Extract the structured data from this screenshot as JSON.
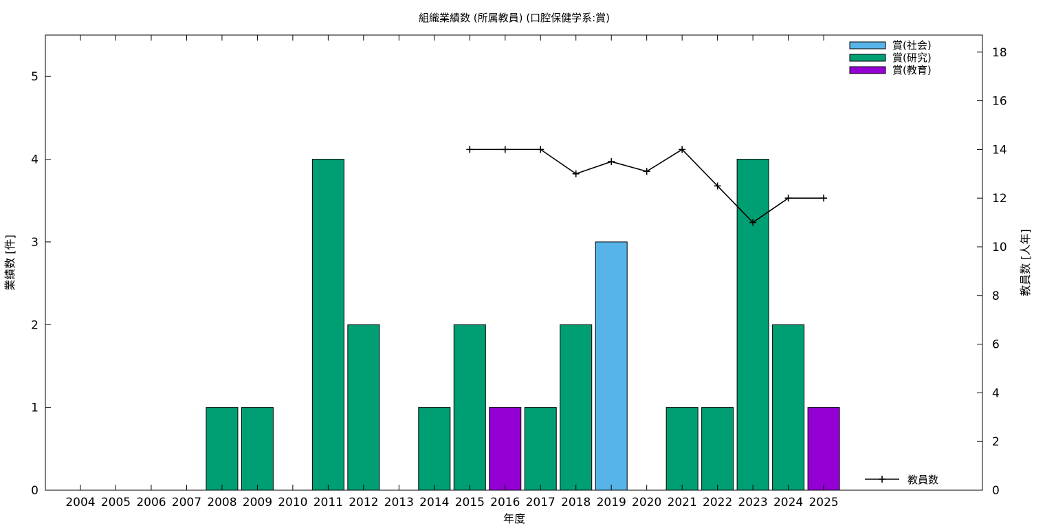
{
  "chart_data": {
    "type": "bar",
    "title": "組織業績数 (所属教員) (口腔保健学系:賞)",
    "xlabel": "年度",
    "ylabel": "業績数 [件]",
    "y2label": "教員数 [人年]",
    "ylim": [
      0,
      5.5
    ],
    "y2lim": [
      0,
      18.7
    ],
    "yticks": [
      0,
      1,
      2,
      3,
      4,
      5
    ],
    "y2ticks": [
      0,
      2,
      4,
      6,
      8,
      10,
      12,
      14,
      16,
      18
    ],
    "categories": [
      "2004",
      "2005",
      "2006",
      "2007",
      "2008",
      "2009",
      "2010",
      "2011",
      "2012",
      "2013",
      "2014",
      "2015",
      "2016",
      "2017",
      "2018",
      "2019",
      "2020",
      "2021",
      "2022",
      "2023",
      "2024",
      "2025"
    ],
    "series": [
      {
        "name": "賞(社会)",
        "color": "#56b4e9",
        "values": [
          0,
          0,
          0,
          0,
          0,
          0,
          0,
          0,
          0,
          0,
          0,
          0,
          0,
          0,
          0,
          3,
          0,
          0,
          0,
          0,
          0,
          0
        ]
      },
      {
        "name": "賞(研究)",
        "color": "#009e73",
        "values": [
          0,
          0,
          0,
          0,
          1,
          1,
          0,
          4,
          2,
          0,
          1,
          2,
          0,
          1,
          2,
          0,
          0,
          1,
          1,
          4,
          2,
          0
        ]
      },
      {
        "name": "賞(教育)",
        "color": "#9400d3",
        "values": [
          0,
          0,
          0,
          0,
          0,
          0,
          0,
          0,
          0,
          0,
          0,
          0,
          1,
          0,
          0,
          0,
          0,
          0,
          0,
          0,
          0,
          1
        ]
      }
    ],
    "line_series": {
      "name": "教員数",
      "color": "#000000",
      "axis": "right",
      "values": [
        null,
        null,
        null,
        null,
        null,
        null,
        null,
        null,
        null,
        null,
        null,
        14,
        14,
        14,
        13,
        13.5,
        13.1,
        14,
        12.5,
        11,
        12,
        12
      ]
    },
    "legend_position": "top-right",
    "line_legend_position": "bottom-right",
    "grid": false
  }
}
